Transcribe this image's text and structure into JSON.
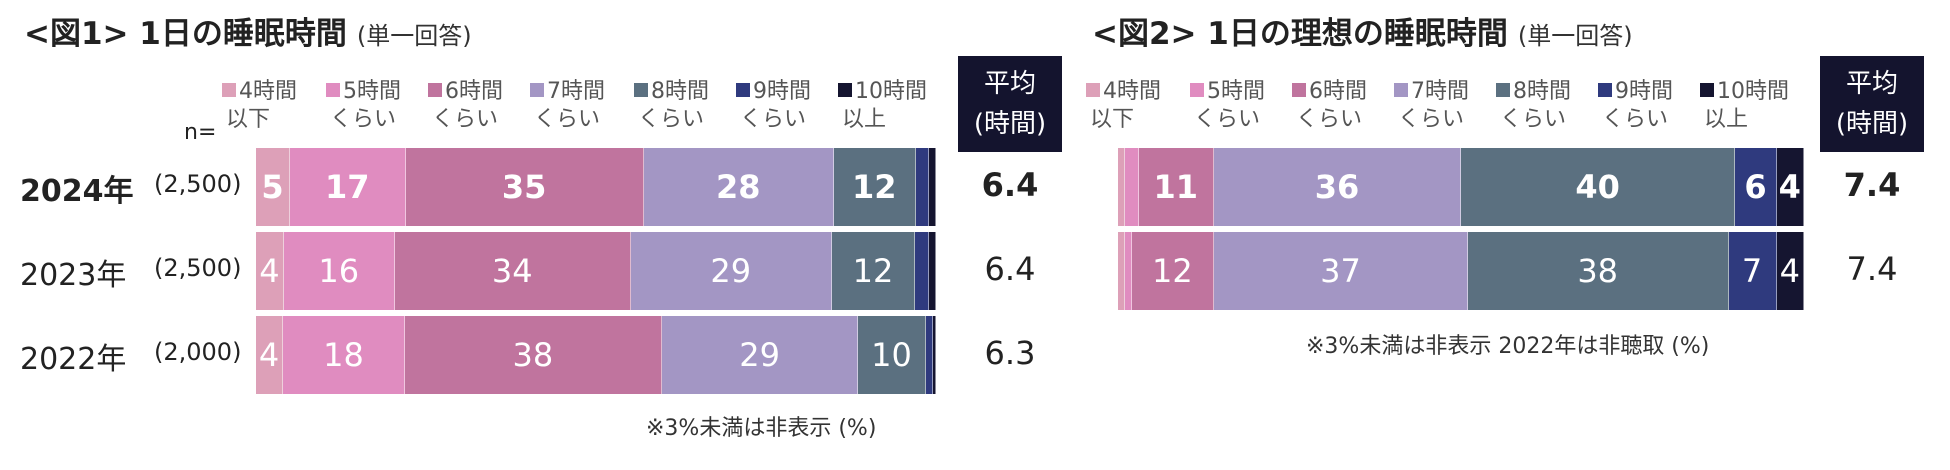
{
  "colors": [
    "#dda0b8",
    "#e08cc0",
    "#c0749e",
    "#a396c4",
    "#5b7080",
    "#2f3a7e",
    "#151530"
  ],
  "legend": [
    {
      "line1": "4時間",
      "line2": "以下"
    },
    {
      "line1": "5時間",
      "line2": "くらい"
    },
    {
      "line1": "6時間",
      "line2": "くらい"
    },
    {
      "line1": "7時間",
      "line2": "くらい"
    },
    {
      "line1": "8時間",
      "line2": "くらい"
    },
    {
      "line1": "9時間",
      "line2": "くらい"
    },
    {
      "line1": "10時間",
      "line2": "以上"
    }
  ],
  "avg_header": {
    "line1": "平均",
    "line2": "(時間)"
  },
  "n_label": "n=",
  "chart1": {
    "title": "<図1> 1日の睡眠時間",
    "subtitle": "(単一回答)",
    "note": "※3%未満は非表示 (%)",
    "rows": [
      {
        "year": "2024年",
        "n": "(2,500)",
        "labels": [
          "5",
          "17",
          "35",
          "28",
          "12",
          "",
          ""
        ],
        "avg": "6.4",
        "bold": true
      },
      {
        "year": "2023年",
        "n": "(2,500)",
        "labels": [
          "4",
          "16",
          "34",
          "29",
          "12",
          "",
          ""
        ],
        "avg": "6.4",
        "bold": false
      },
      {
        "year": "2022年",
        "n": "(2,000)",
        "labels": [
          "4",
          "18",
          "38",
          "29",
          "10",
          "",
          ""
        ],
        "avg": "6.3",
        "bold": false
      }
    ]
  },
  "chart2": {
    "title": "<図2> 1日の理想の睡眠時間",
    "subtitle": "(単一回答)",
    "note": "※3%未満は非表示 2022年は非聴取 (%)",
    "rows": [
      {
        "year": "2024年",
        "labels": [
          "",
          "",
          "11",
          "36",
          "40",
          "6",
          "4"
        ],
        "avg": "7.4",
        "bold": true
      },
      {
        "year": "2023年",
        "labels": [
          "",
          "",
          "12",
          "37",
          "38",
          "7",
          "4"
        ],
        "avg": "7.4",
        "bold": false
      }
    ]
  },
  "chart_data": [
    {
      "type": "bar",
      "title": "<図1> 1日の睡眠時間",
      "subtitle": "(単一回答)",
      "stacked": true,
      "orientation": "horizontal",
      "categories": [
        "2024年",
        "2023年",
        "2022年"
      ],
      "sample_sizes": [
        "(2,500)",
        "(2,500)",
        "(2,000)"
      ],
      "series": [
        {
          "name": "4時間以下",
          "values": [
            5,
            4,
            4
          ]
        },
        {
          "name": "5時間くらい",
          "values": [
            17,
            16,
            18
          ]
        },
        {
          "name": "6時間くらい",
          "values": [
            35,
            34,
            38
          ]
        },
        {
          "name": "7時間くらい",
          "values": [
            28,
            29,
            29
          ]
        },
        {
          "name": "8時間くらい",
          "values": [
            12,
            12,
            10
          ]
        },
        {
          "name": "9時間くらい",
          "values": [
            2,
            2,
            1
          ]
        },
        {
          "name": "10時間以上",
          "values": [
            1,
            1,
            0.5
          ]
        }
      ],
      "averages": [
        6.4,
        6.4,
        6.3
      ],
      "xlim": [
        0,
        100
      ]
    },
    {
      "type": "bar",
      "title": "<図2> 1日の理想の睡眠時間",
      "subtitle": "(単一回答)",
      "stacked": true,
      "orientation": "horizontal",
      "categories": [
        "2024年",
        "2023年"
      ],
      "series": [
        {
          "name": "4時間以下",
          "values": [
            1,
            1
          ]
        },
        {
          "name": "5時間くらい",
          "values": [
            2,
            1
          ]
        },
        {
          "name": "6時間くらい",
          "values": [
            11,
            12
          ]
        },
        {
          "name": "7時間くらい",
          "values": [
            36,
            37
          ]
        },
        {
          "name": "8時間くらい",
          "values": [
            40,
            38
          ]
        },
        {
          "name": "9時間くらい",
          "values": [
            6,
            7
          ]
        },
        {
          "name": "10時間以上",
          "values": [
            4,
            4
          ]
        }
      ],
      "averages": [
        7.4,
        7.4
      ],
      "xlim": [
        0,
        100
      ]
    }
  ]
}
